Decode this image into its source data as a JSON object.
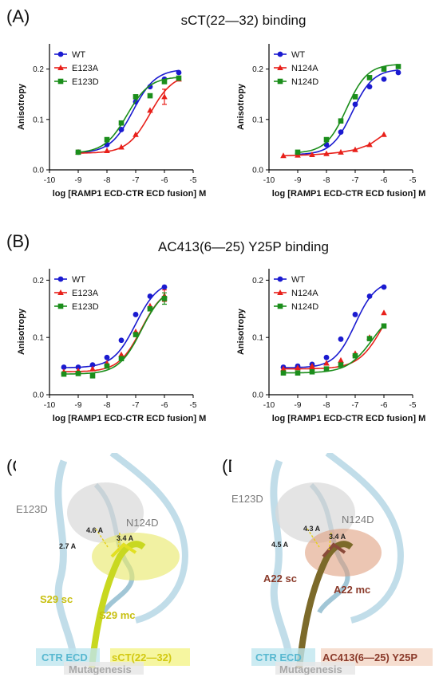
{
  "panels": {
    "A": {
      "label": "(A)",
      "title": "sCT(22—32) binding"
    },
    "B": {
      "label": "(B)",
      "title": "AC413(6—25) Y25P binding"
    },
    "C": {
      "label": "(C)"
    },
    "D": {
      "label": "(D)"
    }
  },
  "structures": {
    "C": {
      "residue_labels": [
        "E123D",
        "N124D",
        "S29 sc",
        "S29 mc"
      ],
      "distance_labels": [
        "4.6 A",
        "3.4 A",
        "2.7 A"
      ],
      "legend": [
        "CTR ECD",
        "sCT(22—32)",
        "Mutagenesis"
      ],
      "colors": {
        "receptor": "#8ec5da",
        "ligand": "#e2e022",
        "mutagenesis": "#b0b0b0"
      }
    },
    "D": {
      "residue_labels": [
        "E123D",
        "N124D",
        "A22 sc",
        "A22 mc"
      ],
      "distance_labels": [
        "4.3 A",
        "3.4 A",
        "4.5 A"
      ],
      "legend": [
        "CTR ECD",
        "AC413(6—25) Y25P",
        "Mutagenesis"
      ],
      "colors": {
        "receptor": "#8ec5da",
        "ligand": "#8a4a3a",
        "mutagenesis": "#b0b0b0"
      }
    }
  },
  "chart_data": [
    {
      "id": "A-left",
      "type": "line",
      "xlabel": "log [RAMP1 ECD-CTR ECD fusion] M",
      "ylabel": "Anisotropy",
      "xlim": [
        -10,
        -5
      ],
      "ylim": [
        0,
        0.25
      ],
      "xticks": [
        -10,
        -9,
        -8,
        -7,
        -6,
        -5
      ],
      "yticks": [
        0.0,
        0.1,
        0.2
      ],
      "ytick_labels": [
        "0.0",
        "0.1",
        "0.2"
      ],
      "legend_position": "top-left",
      "series": [
        {
          "name": "WT",
          "color": "#1a1ad0",
          "marker": "circle",
          "x": [
            -9,
            -8,
            -7.5,
            -7,
            -6.5,
            -6,
            -5.5
          ],
          "y": [
            0.035,
            0.05,
            0.08,
            0.135,
            0.165,
            0.18,
            0.193
          ],
          "fit": {
            "bottom": 0.033,
            "top": 0.2,
            "ec50": -7.1,
            "hill": 1.1
          }
        },
        {
          "name": "E123A",
          "color": "#e8201a",
          "marker": "triangle",
          "x": [
            -9,
            -8,
            -7.5,
            -7,
            -6.5,
            -6,
            -5.5
          ],
          "y": [
            0.035,
            0.038,
            0.045,
            0.07,
            0.118,
            0.145,
            0.18
          ],
          "fit": {
            "bottom": 0.033,
            "top": 0.19,
            "ec50": -6.5,
            "hill": 1.1
          },
          "errors": [
            0,
            0,
            0,
            0,
            0,
            0.015,
            0
          ]
        },
        {
          "name": "E123D",
          "color": "#1b8e1b",
          "marker": "square",
          "x": [
            -9,
            -8,
            -7.5,
            -7,
            -6.5,
            -6,
            -5.5
          ],
          "y": [
            0.035,
            0.06,
            0.093,
            0.145,
            0.147,
            0.175,
            0.182
          ],
          "fit": {
            "bottom": 0.033,
            "top": 0.185,
            "ec50": -7.3,
            "hill": 1.1
          }
        }
      ]
    },
    {
      "id": "A-right",
      "type": "line",
      "xlabel": "log [RAMP1 ECD-CTR ECD fusion] M",
      "ylabel": "Anisotropy",
      "xlim": [
        -10,
        -5
      ],
      "ylim": [
        0,
        0.25
      ],
      "xticks": [
        -10,
        -9,
        -8,
        -7,
        -6,
        -5
      ],
      "yticks": [
        0.0,
        0.1,
        0.2
      ],
      "ytick_labels": [
        "0.0",
        "0.1",
        "0.2"
      ],
      "legend_position": "top-left",
      "series": [
        {
          "name": "WT",
          "color": "#1a1ad0",
          "marker": "circle",
          "x": [
            -9,
            -8,
            -7.5,
            -7,
            -6.5,
            -6,
            -5.5
          ],
          "y": [
            0.032,
            0.05,
            0.075,
            0.13,
            0.165,
            0.18,
            0.193
          ],
          "fit": {
            "bottom": 0.03,
            "top": 0.2,
            "ec50": -7.1,
            "hill": 1.2
          }
        },
        {
          "name": "N124A",
          "color": "#e8201a",
          "marker": "triangle",
          "x": [
            -9.5,
            -9,
            -8.5,
            -8,
            -7.5,
            -7,
            -6.5,
            -6
          ],
          "y": [
            0.028,
            0.029,
            0.03,
            0.032,
            0.035,
            0.04,
            0.05,
            0.07
          ],
          "fit": null
        },
        {
          "name": "N124D",
          "color": "#1b8e1b",
          "marker": "square",
          "x": [
            -9,
            -8,
            -7.5,
            -7,
            -6.5,
            -6,
            -5.5
          ],
          "y": [
            0.035,
            0.06,
            0.097,
            0.145,
            0.183,
            0.2,
            0.205
          ],
          "fit": {
            "bottom": 0.033,
            "top": 0.21,
            "ec50": -7.3,
            "hill": 1.2
          }
        }
      ]
    },
    {
      "id": "B-left",
      "type": "line",
      "xlabel": "log [RAMP1 ECD-CTR ECD fusion] M",
      "ylabel": "Anisotropy",
      "xlim": [
        -10,
        -5
      ],
      "ylim": [
        0,
        0.22
      ],
      "xticks": [
        -10,
        -9,
        -8,
        -7,
        -6,
        -5
      ],
      "yticks": [
        0.0,
        0.1,
        0.2
      ],
      "ytick_labels": [
        "0.0",
        "0.1",
        "0.2"
      ],
      "legend_position": "top-left",
      "series": [
        {
          "name": "WT",
          "color": "#1a1ad0",
          "marker": "circle",
          "x": [
            -9.5,
            -9,
            -8.5,
            -8,
            -7.5,
            -7,
            -6.5,
            -6
          ],
          "y": [
            0.048,
            0.048,
            0.052,
            0.065,
            0.095,
            0.14,
            0.172,
            0.188
          ],
          "fit": {
            "bottom": 0.047,
            "top": 0.2,
            "ec50": -7.0,
            "hill": 1.1
          }
        },
        {
          "name": "E123A",
          "color": "#e8201a",
          "marker": "triangle",
          "x": [
            -9.5,
            -9,
            -8.5,
            -8,
            -7.5,
            -7,
            -6.5,
            -6
          ],
          "y": [
            0.04,
            0.042,
            0.045,
            0.055,
            0.07,
            0.11,
            0.155,
            0.173
          ],
          "fit": {
            "bottom": 0.04,
            "top": 0.19,
            "ec50": -6.8,
            "hill": 1.1
          },
          "errors": [
            0,
            0,
            0,
            0,
            0,
            0,
            0,
            0.01
          ]
        },
        {
          "name": "E123D",
          "color": "#1b8e1b",
          "marker": "square",
          "x": [
            -9.5,
            -9,
            -8.5,
            -8,
            -7.5,
            -7,
            -6.5,
            -6
          ],
          "y": [
            0.036,
            0.037,
            0.033,
            0.05,
            0.063,
            0.105,
            0.15,
            0.168
          ],
          "fit": {
            "bottom": 0.036,
            "top": 0.19,
            "ec50": -6.8,
            "hill": 1.1
          },
          "errors": [
            0,
            0,
            0,
            0,
            0,
            0,
            0,
            0.01
          ]
        }
      ]
    },
    {
      "id": "B-right",
      "type": "line",
      "xlabel": "log [RAMP1 ECD-CTR ECD fusion] M",
      "ylabel": "Anisotropy",
      "xlim": [
        -10,
        -5
      ],
      "ylim": [
        0,
        0.22
      ],
      "xticks": [
        -10,
        -9,
        -8,
        -7,
        -6,
        -5
      ],
      "yticks": [
        0.0,
        0.1,
        0.2
      ],
      "ytick_labels": [
        "0.0",
        "0.1",
        "0.2"
      ],
      "legend_position": "top-left",
      "series": [
        {
          "name": "WT",
          "color": "#1a1ad0",
          "marker": "circle",
          "x": [
            -9.5,
            -9,
            -8.5,
            -8,
            -7.5,
            -7,
            -6.5,
            -6
          ],
          "y": [
            0.048,
            0.05,
            0.053,
            0.065,
            0.097,
            0.14,
            0.172,
            0.188
          ],
          "fit": {
            "bottom": 0.047,
            "top": 0.2,
            "ec50": -7.0,
            "hill": 1.2
          }
        },
        {
          "name": "N124A",
          "color": "#e8201a",
          "marker": "triangle",
          "x": [
            -9.5,
            -9,
            -8.5,
            -8,
            -7.5,
            -7,
            -6.5,
            -6
          ],
          "y": [
            0.045,
            0.047,
            0.05,
            0.055,
            0.06,
            0.072,
            0.1,
            0.143
          ],
          "fit": {
            "bottom": 0.045,
            "top": 0.2,
            "ec50": -6.0,
            "hill": 1.0
          }
        },
        {
          "name": "N124D",
          "color": "#1b8e1b",
          "marker": "square",
          "x": [
            -9.5,
            -9,
            -8.5,
            -8,
            -7.5,
            -7,
            -6.5,
            -6
          ],
          "y": [
            0.038,
            0.038,
            0.04,
            0.045,
            0.052,
            0.068,
            0.098,
            0.12
          ],
          "fit": {
            "bottom": 0.038,
            "top": 0.155,
            "ec50": -6.4,
            "hill": 1.0
          }
        }
      ]
    }
  ]
}
